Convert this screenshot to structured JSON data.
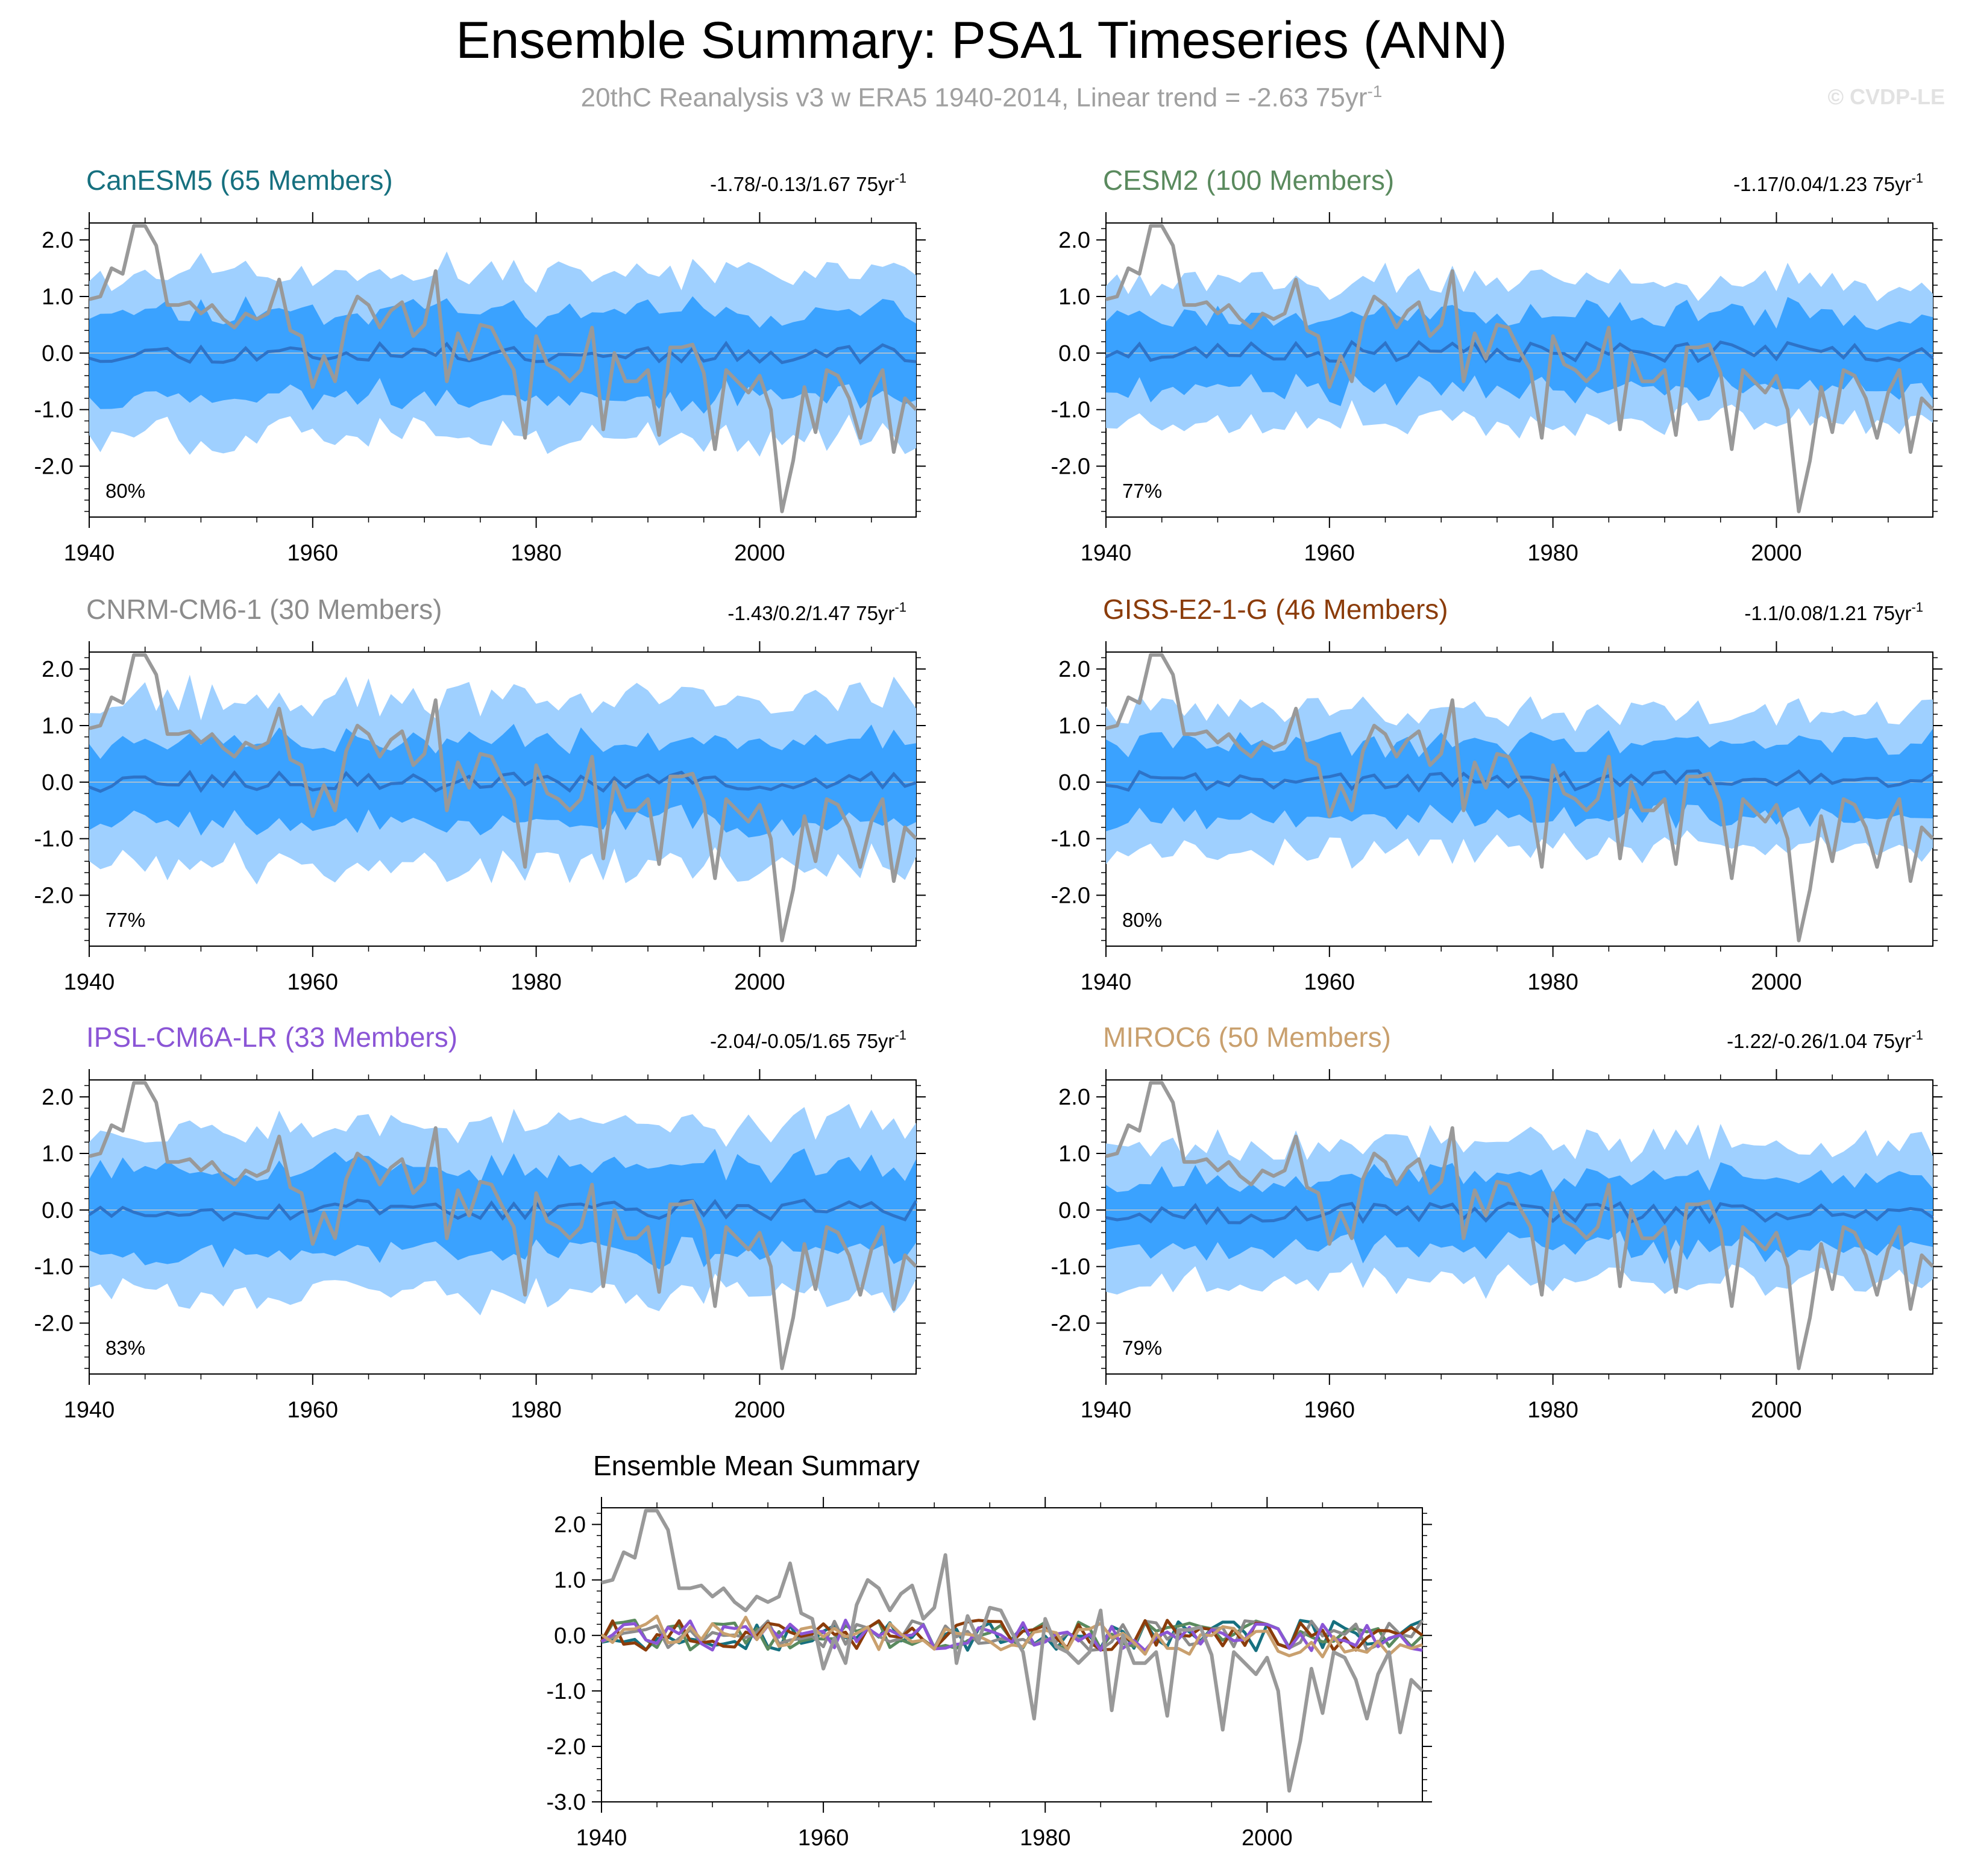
{
  "title": "Ensemble Summary: PSA1 Timeseries (ANN)",
  "subtitle": {
    "prefix": "20thC Reanalysis v3 w ERA5 1940-2014, Linear trend = -2.63 75yr",
    "superscript": "-1"
  },
  "watermark": "© CVDP-LE",
  "colors": {
    "outer_band": "#9fd0ff",
    "inner_band": "#3aa2ff",
    "ensemble_mean": "#2d73c8",
    "observations": "#999999",
    "zero_line": "#c8c8c8"
  },
  "chart_data": [
    {
      "type": "area",
      "model": "CanESM5",
      "members": "65 Members",
      "title_color": "#16707f",
      "range_text": "-1.78/-0.13/1.67 75yr",
      "range_sup": "-1",
      "percent": "80%",
      "x_start": 1940,
      "x_end": 2014,
      "xticks": [
        "1940",
        "1960",
        "1980",
        "2000"
      ],
      "yticks": [
        "2.0",
        "1.0",
        "0.0",
        "-1.0",
        "-2.0"
      ],
      "ylim": [
        -2.9,
        2.3
      ],
      "mean_level": 0.0,
      "inner_halfwidth": 0.75,
      "outer_halfwidth": 1.4,
      "seed": 11
    },
    {
      "type": "area",
      "model": "CESM2",
      "members": "100 Members",
      "title_color": "#5a8a5e",
      "range_text": "-1.17/0.04/1.23 75yr",
      "range_sup": "-1",
      "percent": "77%",
      "x_start": 1940,
      "x_end": 2014,
      "xticks": [
        "1940",
        "1960",
        "1980",
        "2000"
      ],
      "yticks": [
        "2.0",
        "1.0",
        "0.0",
        "-1.0",
        "-2.0"
      ],
      "ylim": [
        -2.9,
        2.3
      ],
      "mean_level": 0.02,
      "inner_halfwidth": 0.65,
      "outer_halfwidth": 1.2,
      "seed": 23
    },
    {
      "type": "area",
      "model": "CNRM-CM6-1",
      "members": "30 Members",
      "title_color": "#8c8c8c",
      "range_text": "-1.43/0.2/1.47 75yr",
      "range_sup": "-1",
      "percent": "77%",
      "x_start": 1940,
      "x_end": 2014,
      "xticks": [
        "1940",
        "1960",
        "1980",
        "2000"
      ],
      "yticks": [
        "2.0",
        "1.0",
        "0.0",
        "-1.0",
        "-2.0"
      ],
      "ylim": [
        -2.9,
        2.3
      ],
      "mean_level": 0.0,
      "inner_halfwidth": 0.7,
      "outer_halfwidth": 1.45,
      "seed": 37
    },
    {
      "type": "area",
      "model": "GISS-E2-1-G",
      "members": "46 Members",
      "title_color": "#8b3c0a",
      "range_text": "-1.1/0.08/1.21 75yr",
      "range_sup": "-1",
      "percent": "80%",
      "x_start": 1940,
      "x_end": 2014,
      "xticks": [
        "1940",
        "1960",
        "1980",
        "2000"
      ],
      "yticks": [
        "2.0",
        "1.0",
        "0.0",
        "-1.0",
        "-2.0"
      ],
      "ylim": [
        -2.9,
        2.3
      ],
      "mean_level": 0.03,
      "inner_halfwidth": 0.65,
      "outer_halfwidth": 1.2,
      "seed": 41
    },
    {
      "type": "area",
      "model": "IPSL-CM6A-LR",
      "members": "33 Members",
      "title_color": "#8b55d6",
      "range_text": "-2.04/-0.05/1.65 75yr",
      "range_sup": "-1",
      "percent": "83%",
      "x_start": 1940,
      "x_end": 2014,
      "xticks": [
        "1940",
        "1960",
        "1980",
        "2000"
      ],
      "yticks": [
        "2.0",
        "1.0",
        "0.0",
        "-1.0",
        "-2.0"
      ],
      "ylim": [
        -2.9,
        2.3
      ],
      "mean_level": 0.0,
      "inner_halfwidth": 0.75,
      "outer_halfwidth": 1.45,
      "seed": 53
    },
    {
      "type": "area",
      "model": "MIROC6",
      "members": "50 Members",
      "title_color": "#c9a06e",
      "range_text": "-1.22/-0.26/1.04 75yr",
      "range_sup": "-1",
      "percent": "79%",
      "x_start": 1940,
      "x_end": 2014,
      "xticks": [
        "1940",
        "1960",
        "1980",
        "2000"
      ],
      "yticks": [
        "2.0",
        "1.0",
        "0.0",
        "-1.0",
        "-2.0"
      ],
      "ylim": [
        -2.9,
        2.3
      ],
      "mean_level": -0.05,
      "inner_halfwidth": 0.6,
      "outer_halfwidth": 1.2,
      "seed": 67
    },
    {
      "type": "line",
      "title": "Ensemble Mean Summary",
      "x_start": 1940,
      "x_end": 2014,
      "xticks": [
        "1940",
        "1960",
        "1980",
        "2000"
      ],
      "yticks": [
        "2.0",
        "1.0",
        "0.0",
        "-1.0",
        "-2.0",
        "-3.0"
      ],
      "ylim": [
        -3.0,
        2.3
      ],
      "series": [
        {
          "name": "CanESM5",
          "color": "#16707f"
        },
        {
          "name": "CESM2",
          "color": "#5a8a5e"
        },
        {
          "name": "CNRM-CM6-1",
          "color": "#8c8c8c"
        },
        {
          "name": "GISS-E2-1-G",
          "color": "#8b3c0a"
        },
        {
          "name": "IPSL-CM6A-LR",
          "color": "#8b55d6"
        },
        {
          "name": "MIROC6",
          "color": "#c9a06e"
        }
      ]
    }
  ],
  "observed_series": {
    "name": "20thC Reanalysis v3 w ERA5",
    "years": [
      1940,
      1941,
      1942,
      1943,
      1944,
      1945,
      1946,
      1947,
      1948,
      1949,
      1950,
      1951,
      1952,
      1953,
      1954,
      1955,
      1956,
      1957,
      1958,
      1959,
      1960,
      1961,
      1962,
      1963,
      1964,
      1965,
      1966,
      1967,
      1968,
      1969,
      1970,
      1971,
      1972,
      1973,
      1974,
      1975,
      1976,
      1977,
      1978,
      1979,
      1980,
      1981,
      1982,
      1983,
      1984,
      1985,
      1986,
      1987,
      1988,
      1989,
      1990,
      1991,
      1992,
      1993,
      1994,
      1995,
      1996,
      1997,
      1998,
      1999,
      2000,
      2001,
      2002,
      2003,
      2004,
      2005,
      2006,
      2007,
      2008,
      2009,
      2010,
      2011,
      2012,
      2013,
      2014
    ],
    "values": [
      0.95,
      1.0,
      1.5,
      1.4,
      2.25,
      2.25,
      1.9,
      0.85,
      0.85,
      0.9,
      0.7,
      0.85,
      0.6,
      0.45,
      0.7,
      0.6,
      0.7,
      1.3,
      0.4,
      0.3,
      -0.6,
      -0.05,
      -0.5,
      0.55,
      1.0,
      0.85,
      0.45,
      0.75,
      0.9,
      0.3,
      0.5,
      1.45,
      -0.5,
      0.35,
      -0.1,
      0.5,
      0.45,
      0.05,
      -0.3,
      -1.5,
      0.3,
      -0.2,
      -0.3,
      -0.5,
      -0.3,
      0.45,
      -1.35,
      0.0,
      -0.5,
      -0.5,
      -0.3,
      -1.45,
      0.1,
      0.1,
      0.15,
      -0.35,
      -1.7,
      -0.3,
      -0.5,
      -0.7,
      -0.4,
      -1.0,
      -2.8,
      -1.9,
      -0.6,
      -1.4,
      -0.3,
      -0.4,
      -0.8,
      -1.5,
      -0.7,
      -0.3,
      -1.75,
      -0.8,
      -1.0
    ]
  },
  "observed_tail": []
}
